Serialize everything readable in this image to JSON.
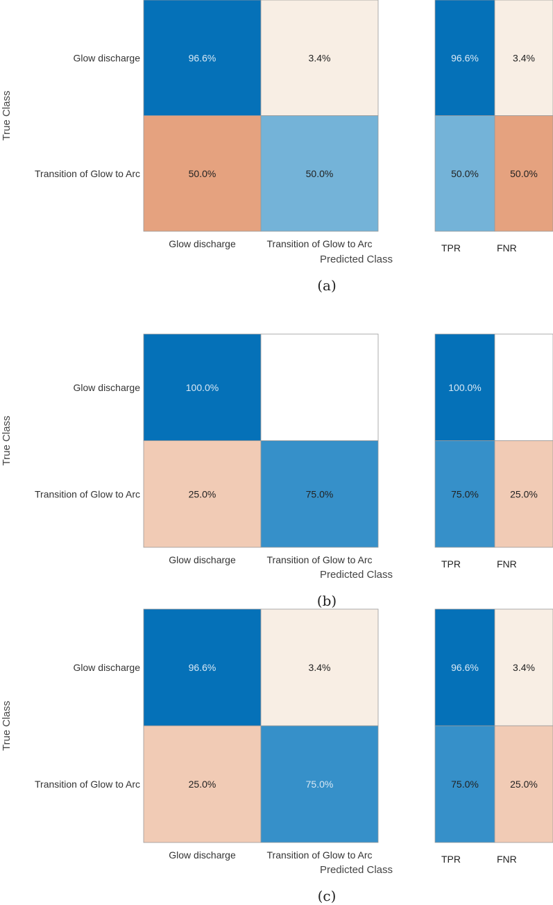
{
  "chart_data": [
    {
      "type": "heatmap",
      "caption": "(a)",
      "ylabel": "True Class",
      "xlabel": "Predicted Class",
      "row_labels": [
        "Glow discharge",
        "Transition of Glow to Arc"
      ],
      "col_labels": [
        "Glow discharge",
        "Transition of Glow to Arc"
      ],
      "matrix": [
        [
          "96.6%",
          "3.4%"
        ],
        [
          "50.0%",
          "50.0%"
        ]
      ],
      "matrix_colors": [
        [
          "#0571b8",
          "#f8eee4"
        ],
        [
          "#e5a27f",
          "#74b3d8"
        ]
      ],
      "matrix_text_colors": [
        [
          "#d8e8f4",
          "#222222"
        ],
        [
          "#222222",
          "#222222"
        ]
      ],
      "summary_labels": [
        "TPR",
        "FNR"
      ],
      "summary": [
        [
          "96.6%",
          "3.4%"
        ],
        [
          "50.0%",
          "50.0%"
        ]
      ],
      "summary_colors": [
        [
          "#0571b8",
          "#f8eee4"
        ],
        [
          "#74b3d8",
          "#e5a27f"
        ]
      ],
      "summary_text_colors": [
        [
          "#d8e8f4",
          "#222222"
        ],
        [
          "#222222",
          "#222222"
        ]
      ]
    },
    {
      "type": "heatmap",
      "caption": "(b)",
      "ylabel": "True Class",
      "xlabel": "Predicted Class",
      "row_labels": [
        "Glow discharge",
        "Transition of Glow to Arc"
      ],
      "col_labels": [
        "Glow discharge",
        "Transition of Glow to Arc"
      ],
      "matrix": [
        [
          "100.0%",
          ""
        ],
        [
          "25.0%",
          "75.0%"
        ]
      ],
      "matrix_colors": [
        [
          "#0571b8",
          "#ffffff"
        ],
        [
          "#f1cbb5",
          "#3690c9"
        ]
      ],
      "matrix_text_colors": [
        [
          "#d8e8f4",
          "#222222"
        ],
        [
          "#222222",
          "#222222"
        ]
      ],
      "summary_labels": [
        "TPR",
        "FNR"
      ],
      "summary": [
        [
          "100.0%",
          ""
        ],
        [
          "75.0%",
          "25.0%"
        ]
      ],
      "summary_colors": [
        [
          "#0571b8",
          "#ffffff"
        ],
        [
          "#3690c9",
          "#f1cbb5"
        ]
      ],
      "summary_text_colors": [
        [
          "#d8e8f4",
          "#222222"
        ],
        [
          "#222222",
          "#222222"
        ]
      ]
    },
    {
      "type": "heatmap",
      "caption": "(c)",
      "ylabel": "True Class",
      "xlabel": "Predicted Class",
      "row_labels": [
        "Glow discharge",
        "Transition of Glow to Arc"
      ],
      "col_labels": [
        "Glow discharge",
        "Transition of Glow to Arc"
      ],
      "matrix": [
        [
          "96.6%",
          "3.4%"
        ],
        [
          "25.0%",
          "75.0%"
        ]
      ],
      "matrix_colors": [
        [
          "#0571b8",
          "#f8eee4"
        ],
        [
          "#f1cbb5",
          "#3690c9"
        ]
      ],
      "matrix_text_colors": [
        [
          "#d8e8f4",
          "#222222"
        ],
        [
          "#222222",
          "#d8e8f4"
        ]
      ],
      "summary_labels": [
        "TPR",
        "FNR"
      ],
      "summary": [
        [
          "96.6%",
          "3.4%"
        ],
        [
          "75.0%",
          "25.0%"
        ]
      ],
      "summary_colors": [
        [
          "#0571b8",
          "#f8eee4"
        ],
        [
          "#3690c9",
          "#f1cbb5"
        ]
      ],
      "summary_text_colors": [
        [
          "#d8e8f4",
          "#222222"
        ],
        [
          "#222222",
          "#222222"
        ]
      ]
    }
  ]
}
